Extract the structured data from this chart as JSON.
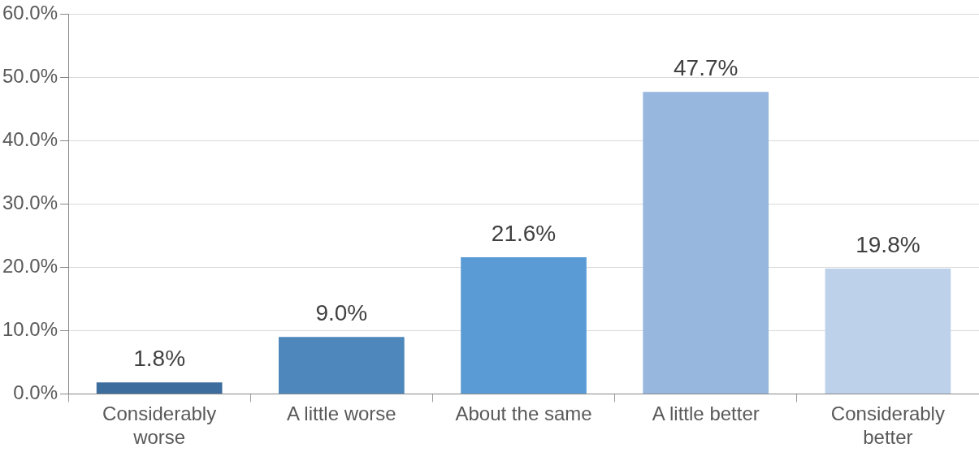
{
  "chart_data": {
    "type": "bar",
    "categories": [
      "Considerably worse",
      "A little worse",
      "About the same",
      "A little better",
      "Considerably better"
    ],
    "values": [
      1.8,
      9.0,
      21.6,
      47.7,
      19.8
    ],
    "colors": [
      "#3d6d9c",
      "#4d87bc",
      "#5b9bd5",
      "#97b7df",
      "#bdd1ea"
    ],
    "value_labels": [
      "1.8%",
      "9.0%",
      "21.6%",
      "47.7%",
      "19.8%"
    ],
    "ylim": [
      0,
      60
    ],
    "yticks": [
      {
        "value": 0,
        "label": "0.0%"
      },
      {
        "value": 10,
        "label": "10.0%"
      },
      {
        "value": 20,
        "label": "20.0%"
      },
      {
        "value": 30,
        "label": "30.0%"
      },
      {
        "value": 40,
        "label": "40.0%"
      },
      {
        "value": 50,
        "label": "50.0%"
      },
      {
        "value": 60,
        "label": "60.0%"
      }
    ],
    "grid": "y"
  }
}
